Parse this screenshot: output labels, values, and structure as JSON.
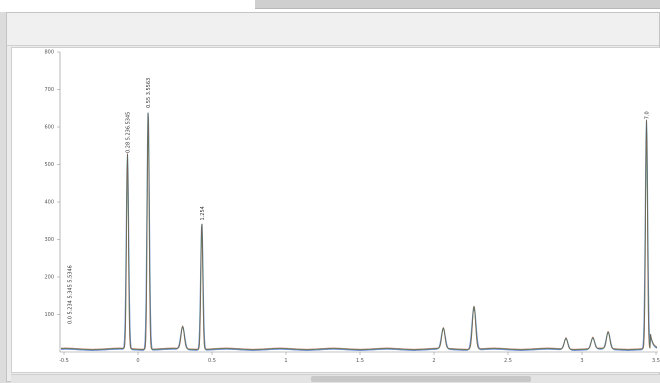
{
  "window": {
    "title": ""
  },
  "colors": {
    "trace_blue": "#5a7fd6",
    "trace_green": "#3aa05a",
    "trace_red": "#c84a4a",
    "trace_gray": "#555555",
    "axis": "#888888"
  },
  "chart_data": {
    "type": "line",
    "title": "",
    "xlabel": "",
    "ylabel": "",
    "xlim": [
      -0.6,
      7.2
    ],
    "ylim": [
      0,
      800
    ],
    "x_ticks": [
      "-0.5",
      "0",
      "0.5",
      "1",
      "1.5",
      "2",
      "2.5",
      "3",
      "3.5"
    ],
    "y_ticks": [
      "100",
      "200",
      "300",
      "400",
      "500",
      "600",
      "700",
      "800"
    ],
    "peaks": [
      {
        "x": 0.28,
        "y": 520,
        "label": "0.28  5.236.5345"
      },
      {
        "x": 0.55,
        "y": 640,
        "label": "0.55  3.5563"
      },
      {
        "x": 1.0,
        "y": 60,
        "label": ""
      },
      {
        "x": 1.25,
        "y": 340,
        "label": "1.254"
      },
      {
        "x": 4.4,
        "y": 55,
        "label": ""
      },
      {
        "x": 4.8,
        "y": 115,
        "label": ""
      },
      {
        "x": 6.0,
        "y": 30,
        "label": ""
      },
      {
        "x": 6.35,
        "y": 30,
        "label": ""
      },
      {
        "x": 6.55,
        "y": 45,
        "label": ""
      },
      {
        "x": 7.05,
        "y": 610,
        "label": "7.0"
      }
    ],
    "start_label": "0.0  5.234 5.345 5.5346"
  }
}
